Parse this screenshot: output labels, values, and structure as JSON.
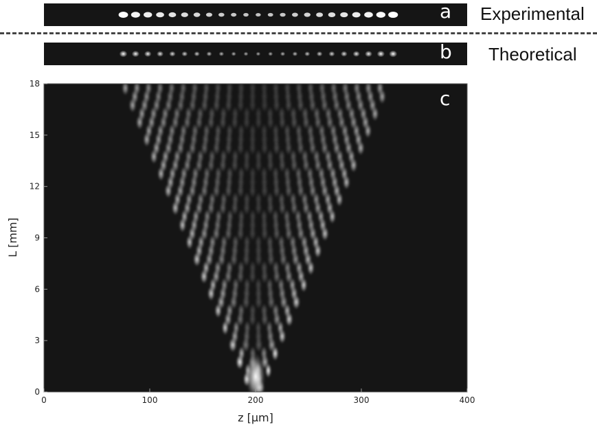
{
  "panels": {
    "a": {
      "letter": "a",
      "label": "Experimental"
    },
    "b": {
      "letter": "b",
      "label": "Theoretical"
    },
    "c": {
      "letter": "c"
    }
  },
  "colors": {
    "background": "#151515",
    "intensity": "#ffffff",
    "divider": "#444444"
  },
  "chart_data": {
    "type": "heatmap",
    "title": "",
    "xlabel": "z [μm]",
    "ylabel": "L [mm]",
    "xlim": [
      0,
      400
    ],
    "ylim": [
      0,
      18
    ],
    "xticks": [
      0,
      100,
      200,
      300,
      400
    ],
    "yticks": [
      0,
      3,
      6,
      9,
      12,
      15,
      18
    ],
    "xtick_labels": [
      "0",
      "100",
      "200",
      "300",
      "400"
    ],
    "ytick_labels": [
      "0",
      "3",
      "6",
      "9",
      "12",
      "15",
      "18"
    ],
    "grid": false,
    "pattern_center_z": 200,
    "cone_edge_z_at_L18": [
      75,
      330
    ]
  }
}
